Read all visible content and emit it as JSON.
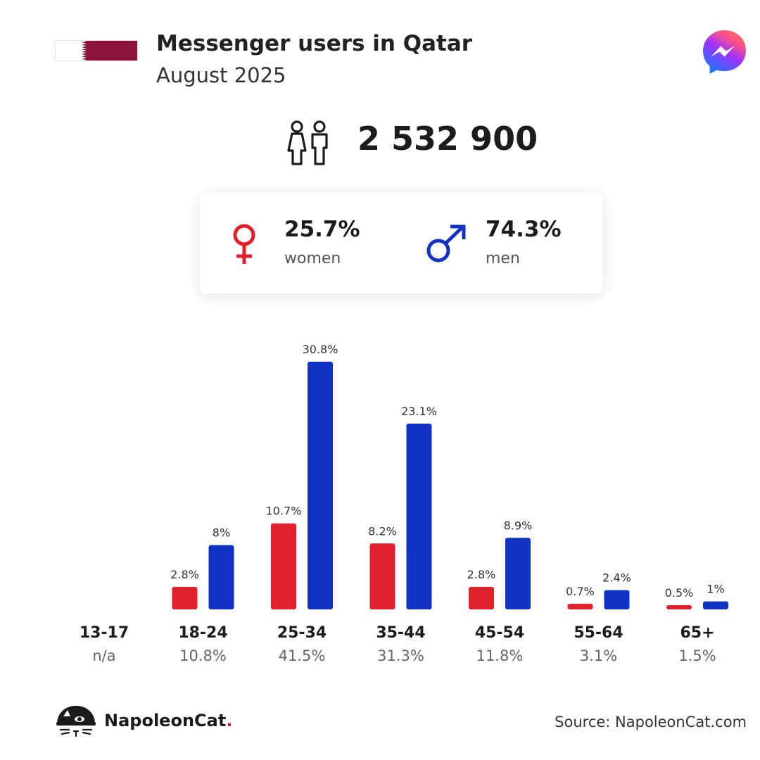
{
  "header": {
    "title": "Messenger users in Qatar",
    "subtitle": "August 2025",
    "flag_colors": {
      "white": "#ffffff",
      "maroon": "#8a1538"
    },
    "logo_icon": "messenger-logo-icon"
  },
  "summary": {
    "total_users": "2 532 900",
    "icon": "people-icon",
    "women": {
      "value": "25.7%",
      "label": "women",
      "color": "#e0202b",
      "icon": "female-symbol-icon"
    },
    "men": {
      "value": "74.3%",
      "label": "men",
      "color": "#1232c4",
      "icon": "male-symbol-icon"
    }
  },
  "chart_data": {
    "type": "bar",
    "categories": [
      "13-17",
      "18-24",
      "25-34",
      "35-44",
      "45-54",
      "55-64",
      "65+"
    ],
    "group_totals": [
      "n/a",
      "10.8%",
      "41.5%",
      "31.3%",
      "11.8%",
      "3.1%",
      "1.5%"
    ],
    "series": [
      {
        "name": "women",
        "color": "#e0202b",
        "values": [
          null,
          2.8,
          10.7,
          8.2,
          2.8,
          0.7,
          0.5
        ],
        "labels": [
          "",
          "2.8%",
          "10.7%",
          "8.2%",
          "2.8%",
          "0.7%",
          "0.5%"
        ]
      },
      {
        "name": "men",
        "color": "#1232c4",
        "values": [
          null,
          8,
          30.8,
          23.1,
          8.9,
          2.4,
          1
        ],
        "labels": [
          "",
          "8%",
          "30.8%",
          "23.1%",
          "8.9%",
          "2.4%",
          "1%"
        ]
      }
    ],
    "ylim": [
      0,
      30.8
    ],
    "grid": false
  },
  "footer": {
    "brand_name": "NapoleonCat",
    "brand_dot": ".",
    "brand_icon": "napoleoncat-logo-icon",
    "source": "Source: NapoleonCat.com"
  }
}
